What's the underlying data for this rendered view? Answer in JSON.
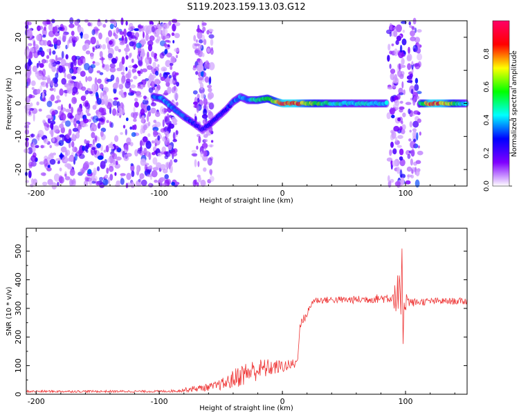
{
  "chart_data": [
    {
      "type": "heatmap",
      "title": "S119.2023.159.13.03.G12",
      "xlabel": "Height of straight line (km)",
      "ylabel": "Frequency (Hz)",
      "xlim": [
        -208,
        150
      ],
      "ylim": [
        -25,
        25
      ],
      "x_ticks": [
        -200,
        -100,
        0,
        100
      ],
      "y_ticks": [
        -20,
        -10,
        0,
        10,
        20
      ],
      "colorbar": {
        "label": "Normalized spectral amplitude",
        "range": [
          0,
          1
        ],
        "ticks": [
          0.0,
          0.2,
          0.4,
          0.6,
          0.8
        ],
        "colors": [
          "#ffffff",
          "#7f00ff",
          "#0000ff",
          "#00ffff",
          "#00ff00",
          "#ffff00",
          "#ff0000",
          "#ff0066"
        ]
      },
      "trace": {
        "x": [
          -105,
          -98,
          -90,
          -80,
          -72,
          -65,
          -58,
          -52,
          -46,
          -40,
          -34,
          -28,
          -20,
          -12,
          -5,
          0,
          10,
          20,
          40,
          60,
          85
        ],
        "freq": [
          2,
          1.5,
          -1,
          -4,
          -6,
          -8,
          -6,
          -4,
          -2,
          0.5,
          2,
          1,
          1,
          1.5,
          0.5,
          0,
          0,
          0,
          0,
          0,
          0
        ],
        "amp": [
          0.35,
          0.4,
          0.4,
          0.35,
          0.3,
          0.25,
          0.3,
          0.3,
          0.3,
          0.35,
          0.4,
          0.4,
          0.55,
          0.6,
          0.7,
          0.9,
          0.9,
          0.7,
          0.5,
          0.45,
          0.45
        ],
        "x2": [
          112,
          120,
          130,
          140,
          150
        ],
        "amp2": [
          0.5,
          0.9,
          0.85,
          0.6,
          0.4
        ]
      },
      "noise_bands": [
        [
          -208,
          -85
        ],
        [
          -72,
          -57
        ],
        [
          86,
          99
        ],
        [
          102,
          112
        ]
      ]
    },
    {
      "type": "line",
      "title": "",
      "xlabel": "Height of straight line (km)",
      "ylabel": "SNR (10 * v/v)",
      "xlim": [
        -208,
        150
      ],
      "ylim": [
        0,
        580
      ],
      "x_ticks": [
        -200,
        -100,
        0,
        100
      ],
      "y_ticks": [
        0,
        100,
        200,
        300,
        400,
        500
      ],
      "color": "#ee3333",
      "series": [
        {
          "x": [
            -208,
            -150,
            -100,
            -85,
            -75,
            -65,
            -55,
            -45,
            -35,
            -25,
            -15,
            -5,
            5,
            12,
            14,
            16,
            20,
            25,
            40,
            60,
            80,
            90,
            95,
            97,
            99,
            101,
            105,
            120,
            150
          ],
          "y": [
            10,
            10,
            10,
            12,
            18,
            22,
            28,
            40,
            65,
            80,
            90,
            95,
            100,
            110,
            230,
            255,
            280,
            328,
            330,
            330,
            335,
            340,
            330,
            300,
            330,
            330,
            320,
            325,
            325
          ],
          "jitter": [
            4,
            4,
            4,
            5,
            10,
            12,
            15,
            25,
            40,
            40,
            35,
            25,
            20,
            20,
            15,
            15,
            15,
            12,
            12,
            14,
            16,
            25,
            120,
            250,
            60,
            25,
            15,
            12,
            12
          ]
        }
      ]
    }
  ]
}
